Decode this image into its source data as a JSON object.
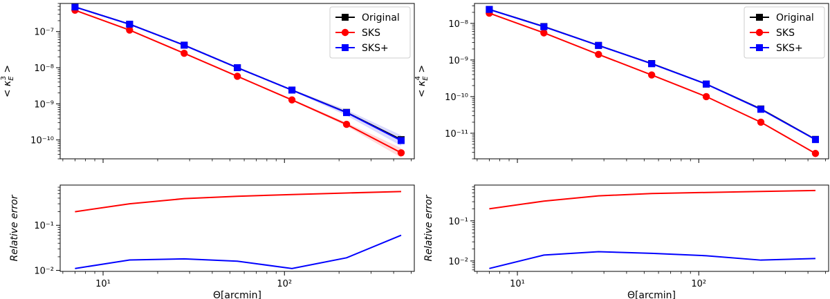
{
  "figure": {
    "xlabel": "Θ[arcmin]",
    "ylabel_top_left": "< κ_E^3 >",
    "ylabel_top_right": "< κ_E^4 >",
    "ylabel_bottom": "Relative error",
    "legend": [
      "Original",
      "SKS",
      "SKS+"
    ]
  },
  "chart_data": [
    {
      "id": "top-left",
      "type": "line",
      "x_scale": "log",
      "y_scale": "log",
      "xlim": [
        5.8,
        520
      ],
      "ylim": [
        3e-11,
        6e-07
      ],
      "x": [
        7,
        14,
        28,
        55,
        110,
        220,
        440
      ],
      "x_ticks": [
        10,
        100
      ],
      "x_tick_labels": [
        "10¹",
        "10²"
      ],
      "x_tick_labels_shown": false,
      "y_ticks": [
        1e-07,
        1e-08,
        1e-09,
        1e-10
      ],
      "y_tick_labels": [
        "10⁻⁷",
        "10⁻⁸",
        "10⁻⁹",
        "10⁻¹⁰"
      ],
      "ylabel": "< κ_E^3 >",
      "legend": "top-right",
      "series": [
        {
          "name": "Original",
          "color": "#000000",
          "marker": "square",
          "values": [
            4.8e-07,
            1.6e-07,
            4.2e-08,
            1e-08,
            2.4e-09,
            5.8e-10,
            1.02e-10
          ]
        },
        {
          "name": "SKS",
          "color": "#ff0000",
          "marker": "circle",
          "values": [
            3.9e-07,
            1.1e-07,
            2.5e-08,
            5.8e-09,
            1.28e-09,
            2.7e-10,
            4.4e-11
          ],
          "band": [
            1.0,
            1.0,
            1.0,
            1.02,
            1.05,
            1.12,
            1.35
          ]
        },
        {
          "name": "SKS+",
          "color": "#0000ff",
          "marker": "square",
          "values": [
            4.8e-07,
            1.6e-07,
            4.2e-08,
            1e-08,
            2.4e-09,
            5.7e-10,
            9.6e-11
          ],
          "band": [
            1.0,
            1.0,
            1.0,
            1.02,
            1.05,
            1.2,
            1.4
          ]
        }
      ]
    },
    {
      "id": "top-right",
      "type": "line",
      "x_scale": "log",
      "y_scale": "log",
      "xlim": [
        5.8,
        520
      ],
      "ylim": [
        2e-12,
        3.5e-08
      ],
      "x": [
        7,
        14,
        28,
        55,
        110,
        220,
        440
      ],
      "x_ticks": [
        10,
        100
      ],
      "x_tick_labels": [
        "10¹",
        "10²"
      ],
      "x_tick_labels_shown": false,
      "y_ticks": [
        1e-08,
        1e-09,
        1e-10,
        1e-11
      ],
      "y_tick_labels": [
        "10⁻⁸",
        "10⁻⁹",
        "10⁻¹⁰",
        "10⁻¹¹"
      ],
      "ylabel": "< κ_E^4 >",
      "legend": "top-right",
      "series": [
        {
          "name": "Original",
          "color": "#000000",
          "marker": "square",
          "values": [
            2.4e-08,
            8.2e-09,
            2.5e-09,
            8e-10,
            2.2e-10,
            4.6e-11,
            6.8e-12
          ]
        },
        {
          "name": "SKS",
          "color": "#ff0000",
          "marker": "circle",
          "values": [
            1.9e-08,
            5.5e-09,
            1.42e-09,
            3.9e-10,
            1e-10,
            2e-11,
            2.8e-12
          ]
        },
        {
          "name": "SKS+",
          "color": "#0000ff",
          "marker": "square",
          "values": [
            2.4e-08,
            8.1e-09,
            2.5e-09,
            7.9e-10,
            2.2e-10,
            4.5e-11,
            6.7e-12
          ]
        }
      ]
    },
    {
      "id": "bottom-left",
      "type": "line",
      "x_scale": "log",
      "y_scale": "log",
      "xlim": [
        5.8,
        520
      ],
      "ylim": [
        0.0095,
        0.78
      ],
      "x": [
        7,
        14,
        28,
        55,
        110,
        220,
        440
      ],
      "x_ticks": [
        10,
        100
      ],
      "x_tick_labels": [
        "10¹",
        "10²"
      ],
      "y_ticks": [
        0.1,
        0.01
      ],
      "y_tick_labels": [
        "10⁻¹",
        "10⁻²"
      ],
      "xlabel": "Θ[arcmin]",
      "ylabel": "Relative error",
      "series": [
        {
          "name": "SKS",
          "color": "#ff0000",
          "values": [
            0.2,
            0.3,
            0.39,
            0.44,
            0.48,
            0.52,
            0.56
          ]
        },
        {
          "name": "SKS+",
          "color": "#0000ff",
          "values": [
            0.011,
            0.017,
            0.018,
            0.016,
            0.011,
            0.019,
            0.06
          ]
        }
      ]
    },
    {
      "id": "bottom-right",
      "type": "line",
      "x_scale": "log",
      "y_scale": "log",
      "xlim": [
        5.8,
        520
      ],
      "ylim": [
        0.0055,
        0.78
      ],
      "x": [
        7,
        14,
        28,
        55,
        110,
        220,
        440
      ],
      "x_ticks": [
        10,
        100
      ],
      "x_tick_labels": [
        "10¹",
        "10²"
      ],
      "y_ticks": [
        0.1,
        0.01
      ],
      "y_tick_labels": [
        "10⁻¹",
        "10⁻²"
      ],
      "xlabel": "Θ[arcmin]",
      "ylabel": "Relative error",
      "series": [
        {
          "name": "SKS",
          "color": "#ff0000",
          "values": [
            0.2,
            0.31,
            0.42,
            0.48,
            0.51,
            0.54,
            0.57
          ]
        },
        {
          "name": "SKS+",
          "color": "#0000ff",
          "values": [
            0.0065,
            0.014,
            0.017,
            0.0155,
            0.0135,
            0.0105,
            0.0115
          ]
        }
      ]
    }
  ]
}
